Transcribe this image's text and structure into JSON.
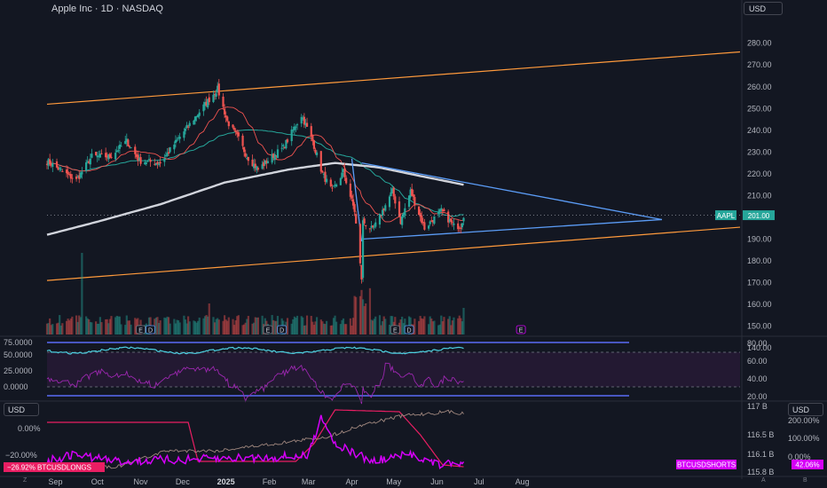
{
  "header": {
    "title": "Apple Inc · 1D · NASDAQ",
    "currency": "USD"
  },
  "colors": {
    "background": "#131722",
    "up": "#26a69a",
    "down": "#ef5350",
    "channel": "#ff9a3c",
    "triangle": "#5b9cf6",
    "ma200": "#d1d4dc",
    "rsi": "#9c27b0",
    "btc_longs": "#e91e63",
    "btc_shorts": "#d500f9"
  },
  "chart_data": [
    {
      "type": "candlestick",
      "title": "Apple Inc · 1D · NASDAQ",
      "y_axis_ticks": [
        140,
        150,
        160,
        170,
        180,
        190,
        200,
        210,
        220,
        230,
        240,
        250,
        260,
        270,
        280
      ],
      "ylim": [
        136,
        284
      ],
      "x_axis_ticks": [
        "Sep",
        "Oct",
        "Nov",
        "Dec",
        "2025",
        "Feb",
        "Mar",
        "Apr",
        "May",
        "Jun",
        "Jul",
        "Aug"
      ],
      "price_label": {
        "symbol": "AAPL",
        "value": "201.00"
      },
      "price_anchors": [
        [
          "2024-08-26",
          226
        ],
        [
          "2024-09-06",
          221
        ],
        [
          "2024-09-16",
          217
        ],
        [
          "2024-09-27",
          228
        ],
        [
          "2024-10-10",
          228
        ],
        [
          "2024-10-22",
          235
        ],
        [
          "2024-10-31",
          226
        ],
        [
          "2024-11-15",
          225
        ],
        [
          "2024-11-29",
          237
        ],
        [
          "2024-12-16",
          251
        ],
        [
          "2024-12-26",
          259
        ],
        [
          "2025-01-02",
          244
        ],
        [
          "2025-01-10",
          236
        ],
        [
          "2025-01-16",
          228
        ],
        [
          "2025-01-24",
          222
        ],
        [
          "2025-02-03",
          228
        ],
        [
          "2025-02-11",
          232
        ],
        [
          "2025-02-24",
          247
        ],
        [
          "2025-03-04",
          235
        ],
        [
          "2025-03-11",
          220
        ],
        [
          "2025-03-18",
          212
        ],
        [
          "2025-03-26",
          221
        ],
        [
          "2025-04-03",
          203
        ],
        [
          "2025-04-08",
          172
        ],
        [
          "2025-04-09",
          198
        ],
        [
          "2025-04-16",
          194
        ],
        [
          "2025-04-30",
          212
        ],
        [
          "2025-05-06",
          198
        ],
        [
          "2025-05-13",
          212
        ],
        [
          "2025-05-23",
          195
        ],
        [
          "2025-06-04",
          203
        ],
        [
          "2025-06-13",
          196
        ],
        [
          "2025-06-18",
          196
        ],
        [
          "2025-06-20",
          201
        ]
      ],
      "moving_average_200_anchors": [
        [
          "2024-08-26",
          192
        ],
        [
          "2024-10-01",
          198
        ],
        [
          "2024-11-15",
          206
        ],
        [
          "2024-12-31",
          216
        ],
        [
          "2025-02-15",
          222
        ],
        [
          "2025-03-20",
          225
        ],
        [
          "2025-04-20",
          223
        ],
        [
          "2025-05-20",
          219
        ],
        [
          "2025-06-20",
          215
        ]
      ],
      "volume_spikes": [
        {
          "date": "2024-09-20",
          "label": "large volume bar"
        }
      ],
      "events": [
        {
          "date": "2024-11-01",
          "marker": "E"
        },
        {
          "date": "2024-11-08",
          "marker": "D"
        },
        {
          "date": "2025-01-31",
          "marker": "E"
        },
        {
          "date": "2025-02-10",
          "marker": "D"
        },
        {
          "date": "2025-05-02",
          "marker": "E"
        },
        {
          "date": "2025-05-12",
          "marker": "D"
        },
        {
          "date": "2025-07-31",
          "marker": "E"
        }
      ]
    },
    {
      "type": "line",
      "left_axis_ticks": [
        "75.0000",
        "50.0000",
        "25.0000",
        "0.0000"
      ],
      "right_axis_ticks": [
        "80.00",
        "60.00",
        "40.00",
        "20.00"
      ],
      "levels": [
        70,
        30
      ]
    },
    {
      "type": "line",
      "left_axis_ticks": [
        "0.00%",
        "−20.00%"
      ],
      "right_axis_ticks_primary": [
        "117 B",
        "116.5 B",
        "116.1 B",
        "115.8 B"
      ],
      "right_axis_ticks_secondary": [
        "200.00%",
        "100.00%",
        "0.00%"
      ],
      "series_labels": [
        {
          "name": "BTCUSDLONGS",
          "value": "−26.92%"
        },
        {
          "name": "BTCUSDSHORTS",
          "value": "42.06%"
        }
      ],
      "currency": "USD"
    }
  ],
  "footer": {
    "left_button": "Z",
    "right_buttons": [
      "A",
      "B"
    ]
  }
}
